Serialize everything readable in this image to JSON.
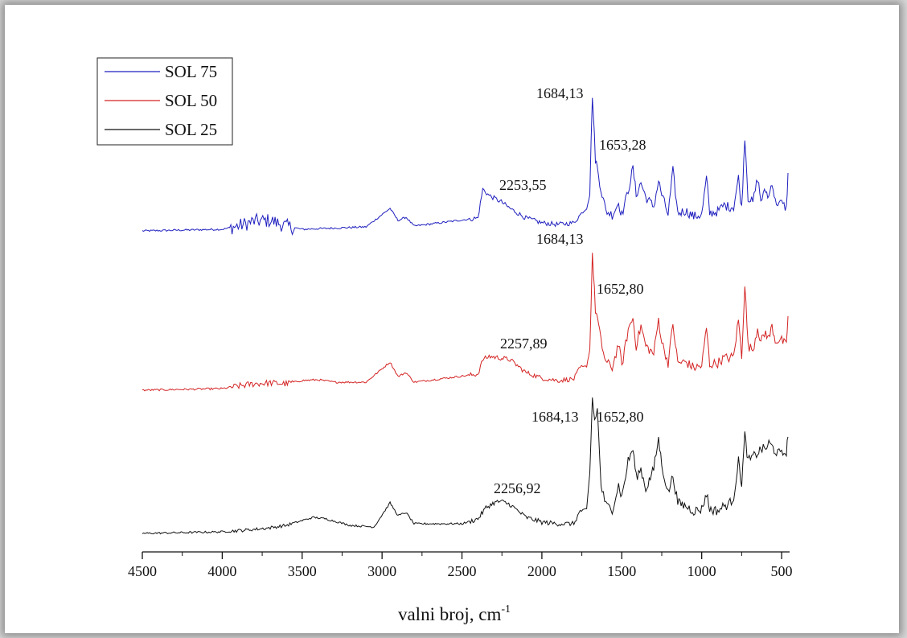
{
  "chart_data": {
    "type": "line",
    "xlabel": "valni broj, cm",
    "xlabel_superscript": "-1",
    "xlim": [
      4500,
      450
    ],
    "x_reversed": true,
    "xticks": [
      4500,
      4000,
      3500,
      3000,
      2500,
      2000,
      1500,
      1000,
      500
    ],
    "xtick_labels": [
      "4500",
      "4000",
      "3500",
      "3000",
      "2500",
      "2000",
      "1500",
      "1000",
      "500"
    ],
    "y_axis_visible": false,
    "grid": false,
    "legend_position": "top-left",
    "series": [
      {
        "name": "SOL 75",
        "color": "#1f1fbf",
        "points": [
          [
            4500,
            0
          ],
          [
            4000,
            0.02
          ],
          [
            3900,
            0.06
          ],
          [
            3800,
            0.12
          ],
          [
            3700,
            0.13
          ],
          [
            3600,
            0.06
          ],
          [
            3500,
            0.02
          ],
          [
            3100,
            0.05
          ],
          [
            2950,
            0.28
          ],
          [
            2900,
            0.13
          ],
          [
            2850,
            0.17
          ],
          [
            2800,
            0.06
          ],
          [
            2400,
            0.16
          ],
          [
            2370,
            0.52
          ],
          [
            2330,
            0.44
          ],
          [
            2253.55,
            0.36
          ],
          [
            2200,
            0.28
          ],
          [
            2100,
            0.16
          ],
          [
            2000,
            0.1
          ],
          [
            1900,
            0.08
          ],
          [
            1800,
            0.1
          ],
          [
            1760,
            0.2
          ],
          [
            1720,
            0.28
          ],
          [
            1700,
            0.45
          ],
          [
            1684.13,
            1.7
          ],
          [
            1665,
            0.9
          ],
          [
            1653.28,
            0.78
          ],
          [
            1630,
            0.52
          ],
          [
            1600,
            0.25
          ],
          [
            1560,
            0.2
          ],
          [
            1520,
            0.35
          ],
          [
            1500,
            0.2
          ],
          [
            1460,
            0.5
          ],
          [
            1430,
            0.78
          ],
          [
            1410,
            0.45
          ],
          [
            1380,
            0.6
          ],
          [
            1350,
            0.42
          ],
          [
            1300,
            0.3
          ],
          [
            1270,
            0.62
          ],
          [
            1250,
            0.45
          ],
          [
            1210,
            0.2
          ],
          [
            1180,
            0.75
          ],
          [
            1150,
            0.22
          ],
          [
            1100,
            0.25
          ],
          [
            1050,
            0.18
          ],
          [
            1000,
            0.2
          ],
          [
            970,
            0.66
          ],
          [
            950,
            0.22
          ],
          [
            900,
            0.24
          ],
          [
            860,
            0.32
          ],
          [
            830,
            0.3
          ],
          [
            800,
            0.3
          ],
          [
            770,
            0.66
          ],
          [
            750,
            0.28
          ],
          [
            730,
            1.18
          ],
          [
            710,
            0.42
          ],
          [
            680,
            0.35
          ],
          [
            650,
            0.66
          ],
          [
            630,
            0.38
          ],
          [
            600,
            0.5
          ],
          [
            580,
            0.42
          ],
          [
            560,
            0.62
          ],
          [
            540,
            0.36
          ],
          [
            500,
            0.34
          ],
          [
            470,
            0.28
          ],
          [
            460,
            0.72
          ]
        ]
      },
      {
        "name": "SOL 50",
        "color": "#d42424",
        "points": [
          [
            4500,
            0
          ],
          [
            4000,
            0.02
          ],
          [
            3800,
            0.08
          ],
          [
            3700,
            0.09
          ],
          [
            3600,
            0.08
          ],
          [
            3500,
            0.12
          ],
          [
            3400,
            0.13
          ],
          [
            3300,
            0.1
          ],
          [
            3100,
            0.1
          ],
          [
            2950,
            0.35
          ],
          [
            2900,
            0.17
          ],
          [
            2850,
            0.22
          ],
          [
            2800,
            0.1
          ],
          [
            2400,
            0.2
          ],
          [
            2370,
            0.38
          ],
          [
            2330,
            0.42
          ],
          [
            2257.89,
            0.4
          ],
          [
            2200,
            0.38
          ],
          [
            2100,
            0.22
          ],
          [
            2000,
            0.15
          ],
          [
            1900,
            0.12
          ],
          [
            1800,
            0.14
          ],
          [
            1760,
            0.28
          ],
          [
            1720,
            0.3
          ],
          [
            1700,
            0.5
          ],
          [
            1684.13,
            1.7
          ],
          [
            1665,
            1.0
          ],
          [
            1652.8,
            0.9
          ],
          [
            1630,
            0.6
          ],
          [
            1600,
            0.35
          ],
          [
            1560,
            0.28
          ],
          [
            1520,
            0.58
          ],
          [
            1500,
            0.3
          ],
          [
            1460,
            0.75
          ],
          [
            1430,
            0.9
          ],
          [
            1410,
            0.55
          ],
          [
            1380,
            0.8
          ],
          [
            1350,
            0.55
          ],
          [
            1300,
            0.45
          ],
          [
            1270,
            0.88
          ],
          [
            1250,
            0.6
          ],
          [
            1210,
            0.34
          ],
          [
            1180,
            0.82
          ],
          [
            1150,
            0.34
          ],
          [
            1100,
            0.35
          ],
          [
            1050,
            0.28
          ],
          [
            1000,
            0.3
          ],
          [
            970,
            0.78
          ],
          [
            950,
            0.32
          ],
          [
            900,
            0.34
          ],
          [
            860,
            0.4
          ],
          [
            830,
            0.4
          ],
          [
            800,
            0.42
          ],
          [
            770,
            0.88
          ],
          [
            750,
            0.42
          ],
          [
            730,
            1.32
          ],
          [
            710,
            0.55
          ],
          [
            680,
            0.5
          ],
          [
            650,
            0.78
          ],
          [
            630,
            0.6
          ],
          [
            600,
            0.72
          ],
          [
            580,
            0.64
          ],
          [
            560,
            0.8
          ],
          [
            540,
            0.62
          ],
          [
            500,
            0.62
          ],
          [
            470,
            0.55
          ],
          [
            460,
            0.92
          ]
        ]
      },
      {
        "name": "SOL 25",
        "color": "#111111",
        "points": [
          [
            4500,
            0
          ],
          [
            4000,
            0.02
          ],
          [
            3800,
            0.05
          ],
          [
            3700,
            0.07
          ],
          [
            3600,
            0.1
          ],
          [
            3500,
            0.16
          ],
          [
            3430,
            0.2
          ],
          [
            3350,
            0.18
          ],
          [
            3200,
            0.1
          ],
          [
            3050,
            0.08
          ],
          [
            2950,
            0.38
          ],
          [
            2900,
            0.22
          ],
          [
            2850,
            0.26
          ],
          [
            2800,
            0.12
          ],
          [
            2500,
            0.12
          ],
          [
            2400,
            0.18
          ],
          [
            2350,
            0.32
          ],
          [
            2300,
            0.38
          ],
          [
            2256.92,
            0.4
          ],
          [
            2200,
            0.36
          ],
          [
            2100,
            0.2
          ],
          [
            2000,
            0.14
          ],
          [
            1900,
            0.12
          ],
          [
            1800,
            0.12
          ],
          [
            1760,
            0.28
          ],
          [
            1720,
            0.3
          ],
          [
            1700,
            0.75
          ],
          [
            1684.13,
            1.68
          ],
          [
            1670,
            1.4
          ],
          [
            1652.8,
            1.55
          ],
          [
            1630,
            0.6
          ],
          [
            1600,
            0.35
          ],
          [
            1560,
            0.3
          ],
          [
            1520,
            0.6
          ],
          [
            1500,
            0.45
          ],
          [
            1460,
            0.9
          ],
          [
            1430,
            1.05
          ],
          [
            1410,
            0.7
          ],
          [
            1380,
            0.8
          ],
          [
            1350,
            0.55
          ],
          [
            1300,
            0.8
          ],
          [
            1270,
            1.18
          ],
          [
            1250,
            0.85
          ],
          [
            1210,
            0.5
          ],
          [
            1180,
            0.72
          ],
          [
            1150,
            0.38
          ],
          [
            1100,
            0.34
          ],
          [
            1050,
            0.28
          ],
          [
            1000,
            0.3
          ],
          [
            970,
            0.5
          ],
          [
            950,
            0.3
          ],
          [
            900,
            0.28
          ],
          [
            860,
            0.34
          ],
          [
            830,
            0.36
          ],
          [
            800,
            0.45
          ],
          [
            770,
            0.9
          ],
          [
            750,
            0.62
          ],
          [
            730,
            1.22
          ],
          [
            710,
            0.9
          ],
          [
            680,
            0.95
          ],
          [
            650,
            1.0
          ],
          [
            630,
            1.05
          ],
          [
            600,
            1.05
          ],
          [
            580,
            1.12
          ],
          [
            560,
            1.08
          ],
          [
            540,
            1.02
          ],
          [
            500,
            0.98
          ],
          [
            470,
            1.02
          ],
          [
            460,
            1.2
          ]
        ]
      }
    ],
    "annotations": [
      {
        "series": "SOL 75",
        "text": "1684,13"
      },
      {
        "series": "SOL 75",
        "text": "1653,28"
      },
      {
        "series": "SOL 75",
        "text": "2253,55"
      },
      {
        "series": "SOL 50",
        "text": "1684,13"
      },
      {
        "series": "SOL 50",
        "text": "1652,80"
      },
      {
        "series": "SOL 50",
        "text": "2257,89"
      },
      {
        "series": "SOL 25",
        "text": "1684,13"
      },
      {
        "series": "SOL 25",
        "text": "1652,80"
      },
      {
        "series": "SOL 25",
        "text": "2256,92"
      }
    ]
  }
}
